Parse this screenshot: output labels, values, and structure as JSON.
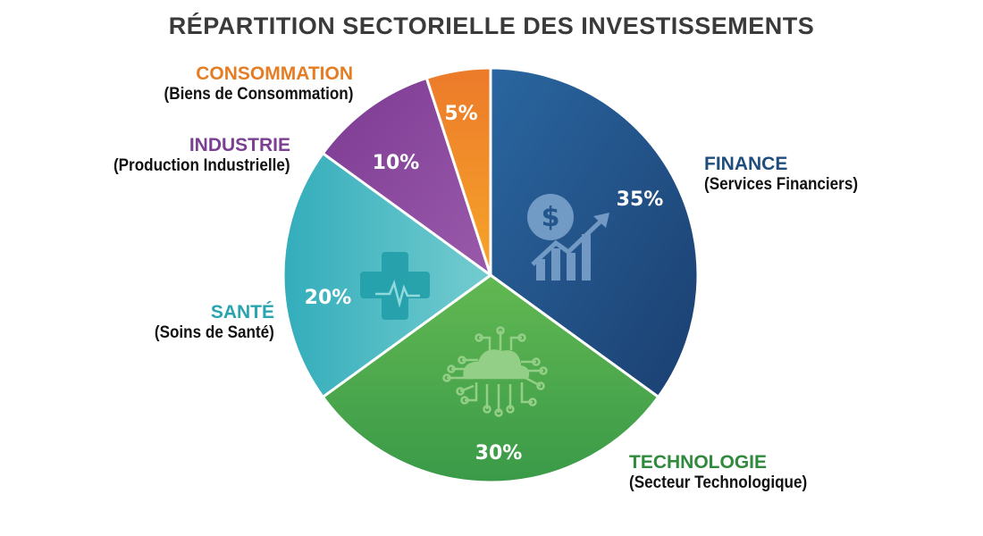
{
  "chart_data": {
    "type": "pie",
    "title": "RÉPARTITION SECTORIELLE DES INVESTISSEMENTS",
    "slices": [
      {
        "name": "FINANCE",
        "subtitle": "(Services Financiers)",
        "value": 35,
        "label": "35%",
        "color": "#23568a",
        "icon": "dollar-growth-chart-icon"
      },
      {
        "name": "TECHNOLOGIE",
        "subtitle": "(Secteur Technologique)",
        "value": 30,
        "label": "30%",
        "color": "#4ea84c",
        "icon": "cloud-circuit-icon"
      },
      {
        "name": "SANTÉ",
        "subtitle": "(Soins de Santé)",
        "value": 20,
        "label": "20%",
        "color": "#3fb9c2",
        "icon": "medical-cross-heartbeat-icon"
      },
      {
        "name": "INDUSTRIE",
        "subtitle": "(Production Industrielle)",
        "value": 10,
        "label": "10%",
        "color": "#8b4b9f"
      },
      {
        "name": "CONSOMMATION",
        "subtitle": "(Biens de Consommation)",
        "value": 5,
        "label": "5%",
        "color": "#f08c2a"
      }
    ],
    "start": "top",
    "direction": "clockwise"
  },
  "label_colors": {
    "FINANCE": "#1f4e7e",
    "TECHNOLOGIE": "#2f8a3c",
    "SANTÉ": "#2aa5b0",
    "INDUSTRIE": "#7b3f93",
    "CONSOMMATION": "#e57d25"
  }
}
